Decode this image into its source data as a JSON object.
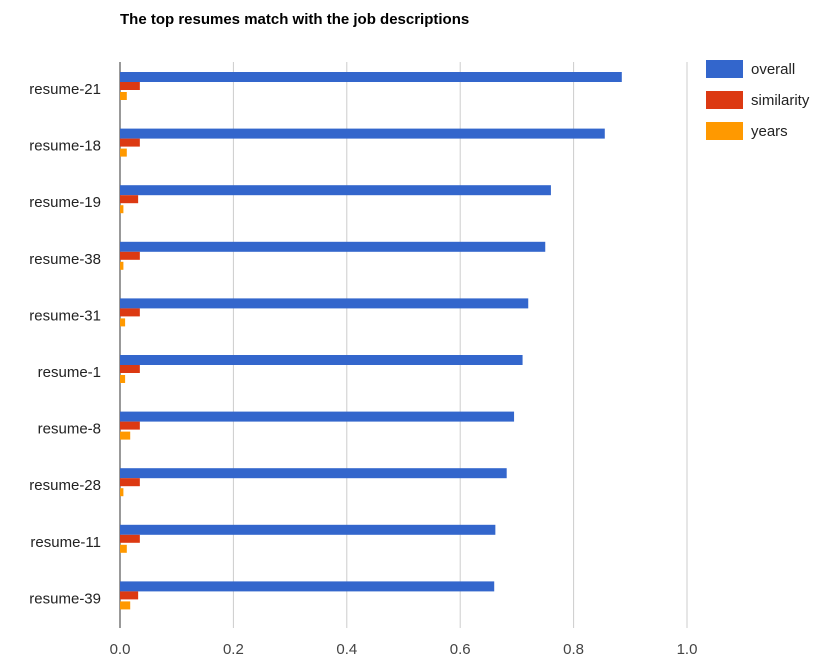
{
  "chart_data": {
    "type": "bar",
    "orientation": "horizontal",
    "title": "The top resumes match with the job descriptions",
    "categories": [
      "resume-21",
      "resume-18",
      "resume-19",
      "resume-38",
      "resume-31",
      "resume-1",
      "resume-8",
      "resume-28",
      "resume-11",
      "resume-39"
    ],
    "series": [
      {
        "name": "overall",
        "color": "#3366cc",
        "values": [
          0.885,
          0.855,
          0.76,
          0.75,
          0.72,
          0.71,
          0.695,
          0.682,
          0.662,
          0.66
        ]
      },
      {
        "name": "similarity",
        "color": "#dc3912",
        "values": [
          0.035,
          0.035,
          0.032,
          0.035,
          0.035,
          0.035,
          0.035,
          0.035,
          0.035,
          0.032
        ]
      },
      {
        "name": "years",
        "color": "#ff9900",
        "values": [
          0.012,
          0.012,
          0.006,
          0.006,
          0.009,
          0.009,
          0.018,
          0.006,
          0.012,
          0.018
        ]
      }
    ],
    "xlim": [
      0,
      1.0
    ],
    "xticks": [
      "0.0",
      "0.2",
      "0.4",
      "0.6",
      "0.8",
      "1.0"
    ],
    "xtick_values": [
      0,
      0.2,
      0.4,
      0.6,
      0.8,
      1.0
    ],
    "grid": true,
    "legend": "right"
  }
}
